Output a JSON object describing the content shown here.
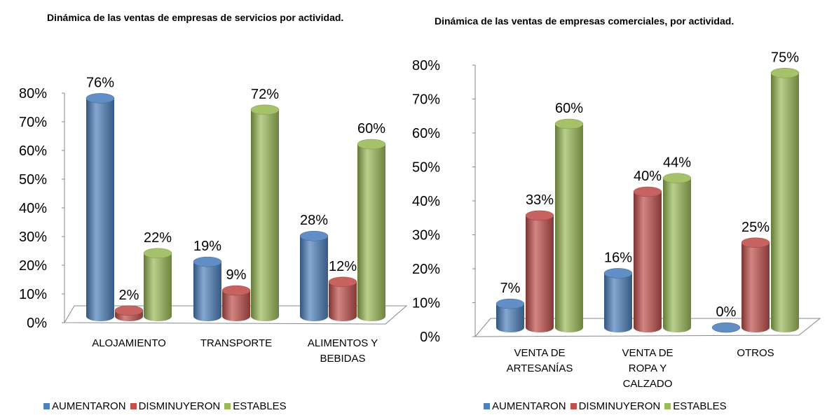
{
  "charts": [
    {
      "type": "bar3d",
      "title": "Dinámica de las ventas de empresas de servicios por actividad.",
      "categories": [
        "ALOJAMIENTO",
        "TRANSPORTE",
        "ALIMENTOS Y BEBIDAS"
      ],
      "series": [
        {
          "name": "AUMENTARON",
          "color": "#4f81bd",
          "values": [
            76,
            19,
            28
          ],
          "value_labels": [
            "76%",
            "19%",
            "28%"
          ]
        },
        {
          "name": "DISMINUYERON",
          "color": "#c0504d",
          "values": [
            2,
            9,
            12
          ],
          "value_labels": [
            "2%",
            "9%",
            "12%"
          ]
        },
        {
          "name": "ESTABLES",
          "color": "#9bbb59",
          "values": [
            22,
            72,
            60
          ],
          "value_labels": [
            "22%",
            "72%",
            "60%"
          ]
        }
      ],
      "ylim": [
        0,
        80
      ],
      "yticks": [
        {
          "value": 0,
          "label": "0%"
        },
        {
          "value": 10,
          "label": "10%"
        },
        {
          "value": 20,
          "label": "20%"
        },
        {
          "value": 30,
          "label": "30%"
        },
        {
          "value": 40,
          "label": "40%"
        },
        {
          "value": 50,
          "label": "50%"
        },
        {
          "value": 60,
          "label": "60%"
        },
        {
          "value": 70,
          "label": "70%"
        },
        {
          "value": 80,
          "label": "80%"
        }
      ],
      "legend": "bottom"
    },
    {
      "type": "bar3d",
      "title": "Dinámica de las ventas de empresas comerciales, por actividad.",
      "categories": [
        "VENTA DE ARTESANÍAS",
        "VENTA DE ROPA Y CALZADO",
        "OTROS"
      ],
      "series": [
        {
          "name": "AUMENTARON",
          "color": "#4f81bd",
          "values": [
            7,
            16,
            0
          ],
          "value_labels": [
            "7%",
            "16%",
            "0%"
          ]
        },
        {
          "name": "DISMINUYERON",
          "color": "#c0504d",
          "values": [
            33,
            40,
            25
          ],
          "value_labels": [
            "33%",
            "40%",
            "25%"
          ]
        },
        {
          "name": "ESTABLES",
          "color": "#9bbb59",
          "values": [
            60,
            44,
            75
          ],
          "value_labels": [
            "60%",
            "44%",
            "75%"
          ]
        }
      ],
      "ylim": [
        0,
        80
      ],
      "yticks": [
        {
          "value": 0,
          "label": "0%"
        },
        {
          "value": 10,
          "label": "10%"
        },
        {
          "value": 20,
          "label": "20%"
        },
        {
          "value": 30,
          "label": "30%"
        },
        {
          "value": 40,
          "label": "40%"
        },
        {
          "value": 50,
          "label": "50%"
        },
        {
          "value": 60,
          "label": "60%"
        },
        {
          "value": 70,
          "label": "70%"
        },
        {
          "value": 80,
          "label": "80%"
        }
      ],
      "legend": "bottom"
    }
  ]
}
